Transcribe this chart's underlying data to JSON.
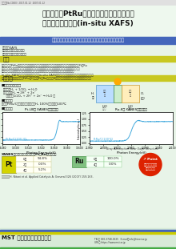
{
  "title_line1": "燃料電池用PtRu触媒の雰囲気・温度制御下",
  "title_line2_pre": "での金属価数評価(",
  "title_line2_italic": "in-situ",
  "title_line2_post": " XAFS)",
  "small_top": "分析事例No.C0403  2017.01.12  2007.01.12",
  "subtitle": "ガス雰囲気・温度を制御した条件での化学状態評価が可能",
  "meta_lines": [
    "測定法：XAFS",
    "製品分野：燃料電池・電極",
    "分析目的：化学結合状態評価"
  ],
  "section_abstract": "概要",
  "abs_lines": [
    "カーボン担持PtRuからなる二種類の燃料電池用アノード燃料極触媒として使用されています。但しPtとRu",
    "の比率にはCO耐性能量の向上が求められています。個々に研究開発が進んでいます。燃料電池動作条",
    "件下の触媒の化学状態評価するためには、試料のガス雰囲気・温度を制御した装置を必要とする",
    "in-situ XAFSが有効です。本事例では、in-situ XAFSを用いて実際に燃料電池として用いられるガス雰",
    "囲気・温度に制御した還元下PtRuにC触媒のPt、RuについてX線吸収端近傍評価を行った事例を報告します。"
  ],
  "section_data": "データ",
  "fuel_cell_subtitle": "■燃料電池の動作式",
  "fuel_eq1": "電電式：H₂ + 1/2O₂ → H₂O",
  "fuel_eq2": "（燃料極：H₂ → 2H⁺ + 2e⁻",
  "fuel_eq3": "   空気極：1/2O₂ + 2H⁺ + 2e⁻ → H₂O ）",
  "measure_subtitle": "■測定条件",
  "measure_text": "試料：PtRu/C触媒　　ガス雰囲気：H₂ 100%　　温度：100℃",
  "result_subtitle": "■測定結果",
  "pt_graph_title": "Pt-LIII端 XANESスペクトル",
  "ru_graph_title": "Ru-K端 XANESスペクトル",
  "pt_label": "PtRu/C(100 ℃)",
  "ru_label": "PtRu/C(100℃)",
  "xanes_note": "X-ray Absorption Near Edge Structure",
  "table_title": "XANESデータの線形分離によるPt・Ruの価数評価",
  "pt_rows": [
    [
      "0価",
      "94.8%"
    ],
    [
      "2価",
      "0.0%"
    ],
    [
      "4価",
      "5.2%"
    ]
  ],
  "ru_rows": [
    [
      "0価",
      "100.0%"
    ],
    [
      "4価",
      "0.0%"
    ]
  ],
  "pt_color": "#d4d400",
  "ru_color": "#80c080",
  "point_color": "#dd2200",
  "ref_text": "参考文献：H. Nitani et al. Applied Catalysis A: General 326 (2007) 159-163.",
  "footer_service": "分析サービス・各ページの技術情報はこちらをサポート",
  "mst_name": "MST 材料科学技術振興財団",
  "tel_text": "TEL： 050-3748-0525   E-mail：info@hinet.or.jp",
  "url_text": "URL： https://www.mst.or.jp",
  "bg_color": "#e8f4e8",
  "title_bg": "#ffffff",
  "subtitle_bar_color": "#4466bb",
  "section_bar_color": "#c8c820",
  "footer_bg": "#d8ead8",
  "footer_blue": "#4466bb",
  "footer_yellow": "#cccc00",
  "footer_green": "#44aa44"
}
